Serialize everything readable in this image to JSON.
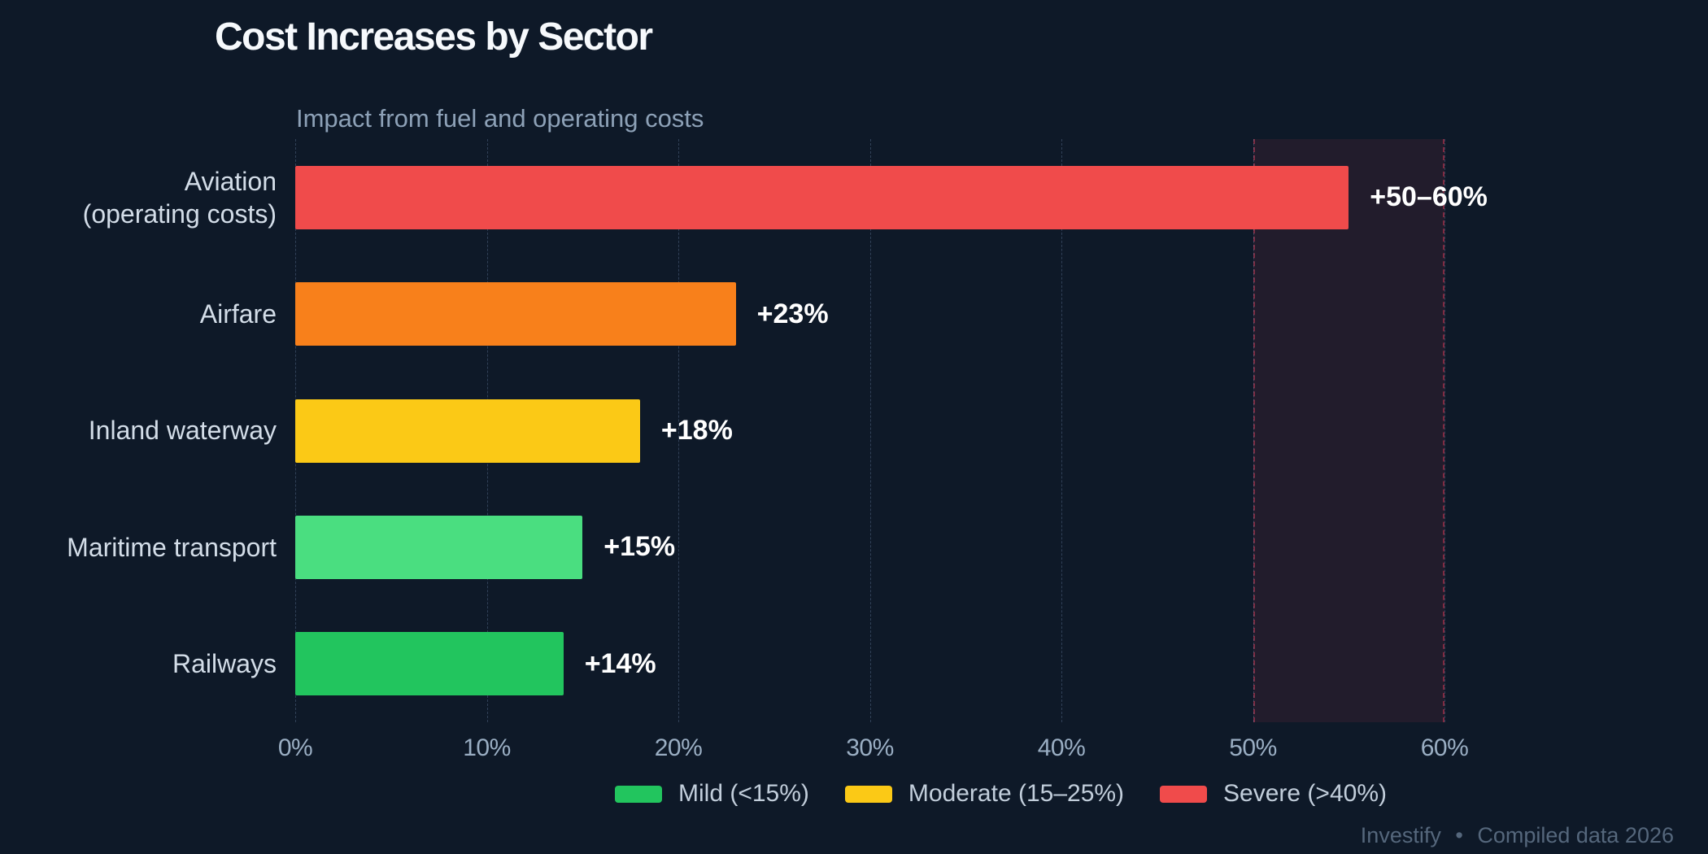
{
  "title": "Cost Increases by Sector",
  "subtitle": "Impact from fuel and operating costs",
  "footer": {
    "brand": "Investify",
    "separator": "•",
    "note": "Compiled data 2026"
  },
  "colors": {
    "background": "#0e1928",
    "title_text": "#f6f9fc",
    "subtitle_text": "#8da1b7",
    "category_text": "#d3dde8",
    "tick_text": "#9aaec3",
    "value_text": "#ffffff",
    "legend_text": "#c2cedb",
    "footer_text": "#55677c",
    "gridline": "rgba(123,152,189,0.32)"
  },
  "chart_data": {
    "type": "bar",
    "orientation": "horizontal",
    "title": "Cost Increases by Sector",
    "subtitle": "Impact from fuel and operating costs",
    "xlabel": "",
    "ylabel": "",
    "xlim": [
      0,
      60
    ],
    "grid": "vertical-dashed",
    "x_ticks": [
      0,
      10,
      20,
      30,
      40,
      50,
      60
    ],
    "x_tick_labels": [
      "0%",
      "10%",
      "20%",
      "30%",
      "40%",
      "50%",
      "60%"
    ],
    "categories": [
      "Aviation (operating costs)",
      "Airfare",
      "Inland waterway",
      "Maritime transport",
      "Railways"
    ],
    "category_lines": [
      [
        "Aviation",
        "(operating costs)"
      ],
      [
        "Airfare"
      ],
      [
        "Inland waterway"
      ],
      [
        "Maritime transport"
      ],
      [
        "Railways"
      ]
    ],
    "values": [
      55,
      23,
      18,
      15,
      14
    ],
    "bar_labels": [
      "+50–60%",
      "+23%",
      "+18%",
      "+15%",
      "+14%"
    ],
    "bar_colors": [
      "#f04b4b",
      "#f8801b",
      "#fbc916",
      "#4ade80",
      "#22c55e"
    ],
    "highlight_band": {
      "from": 50,
      "to": 60,
      "fill": "rgba(244,63,94,0.09)",
      "border": "rgba(244,63,94,0.45)"
    },
    "legend_position": "bottom",
    "legend": [
      {
        "label": "Mild (<15%)",
        "color": "#22c55e"
      },
      {
        "label": "Moderate (15–25%)",
        "color": "#fbc916"
      },
      {
        "label": "Severe (>40%)",
        "color": "#f04b4b"
      }
    ]
  }
}
